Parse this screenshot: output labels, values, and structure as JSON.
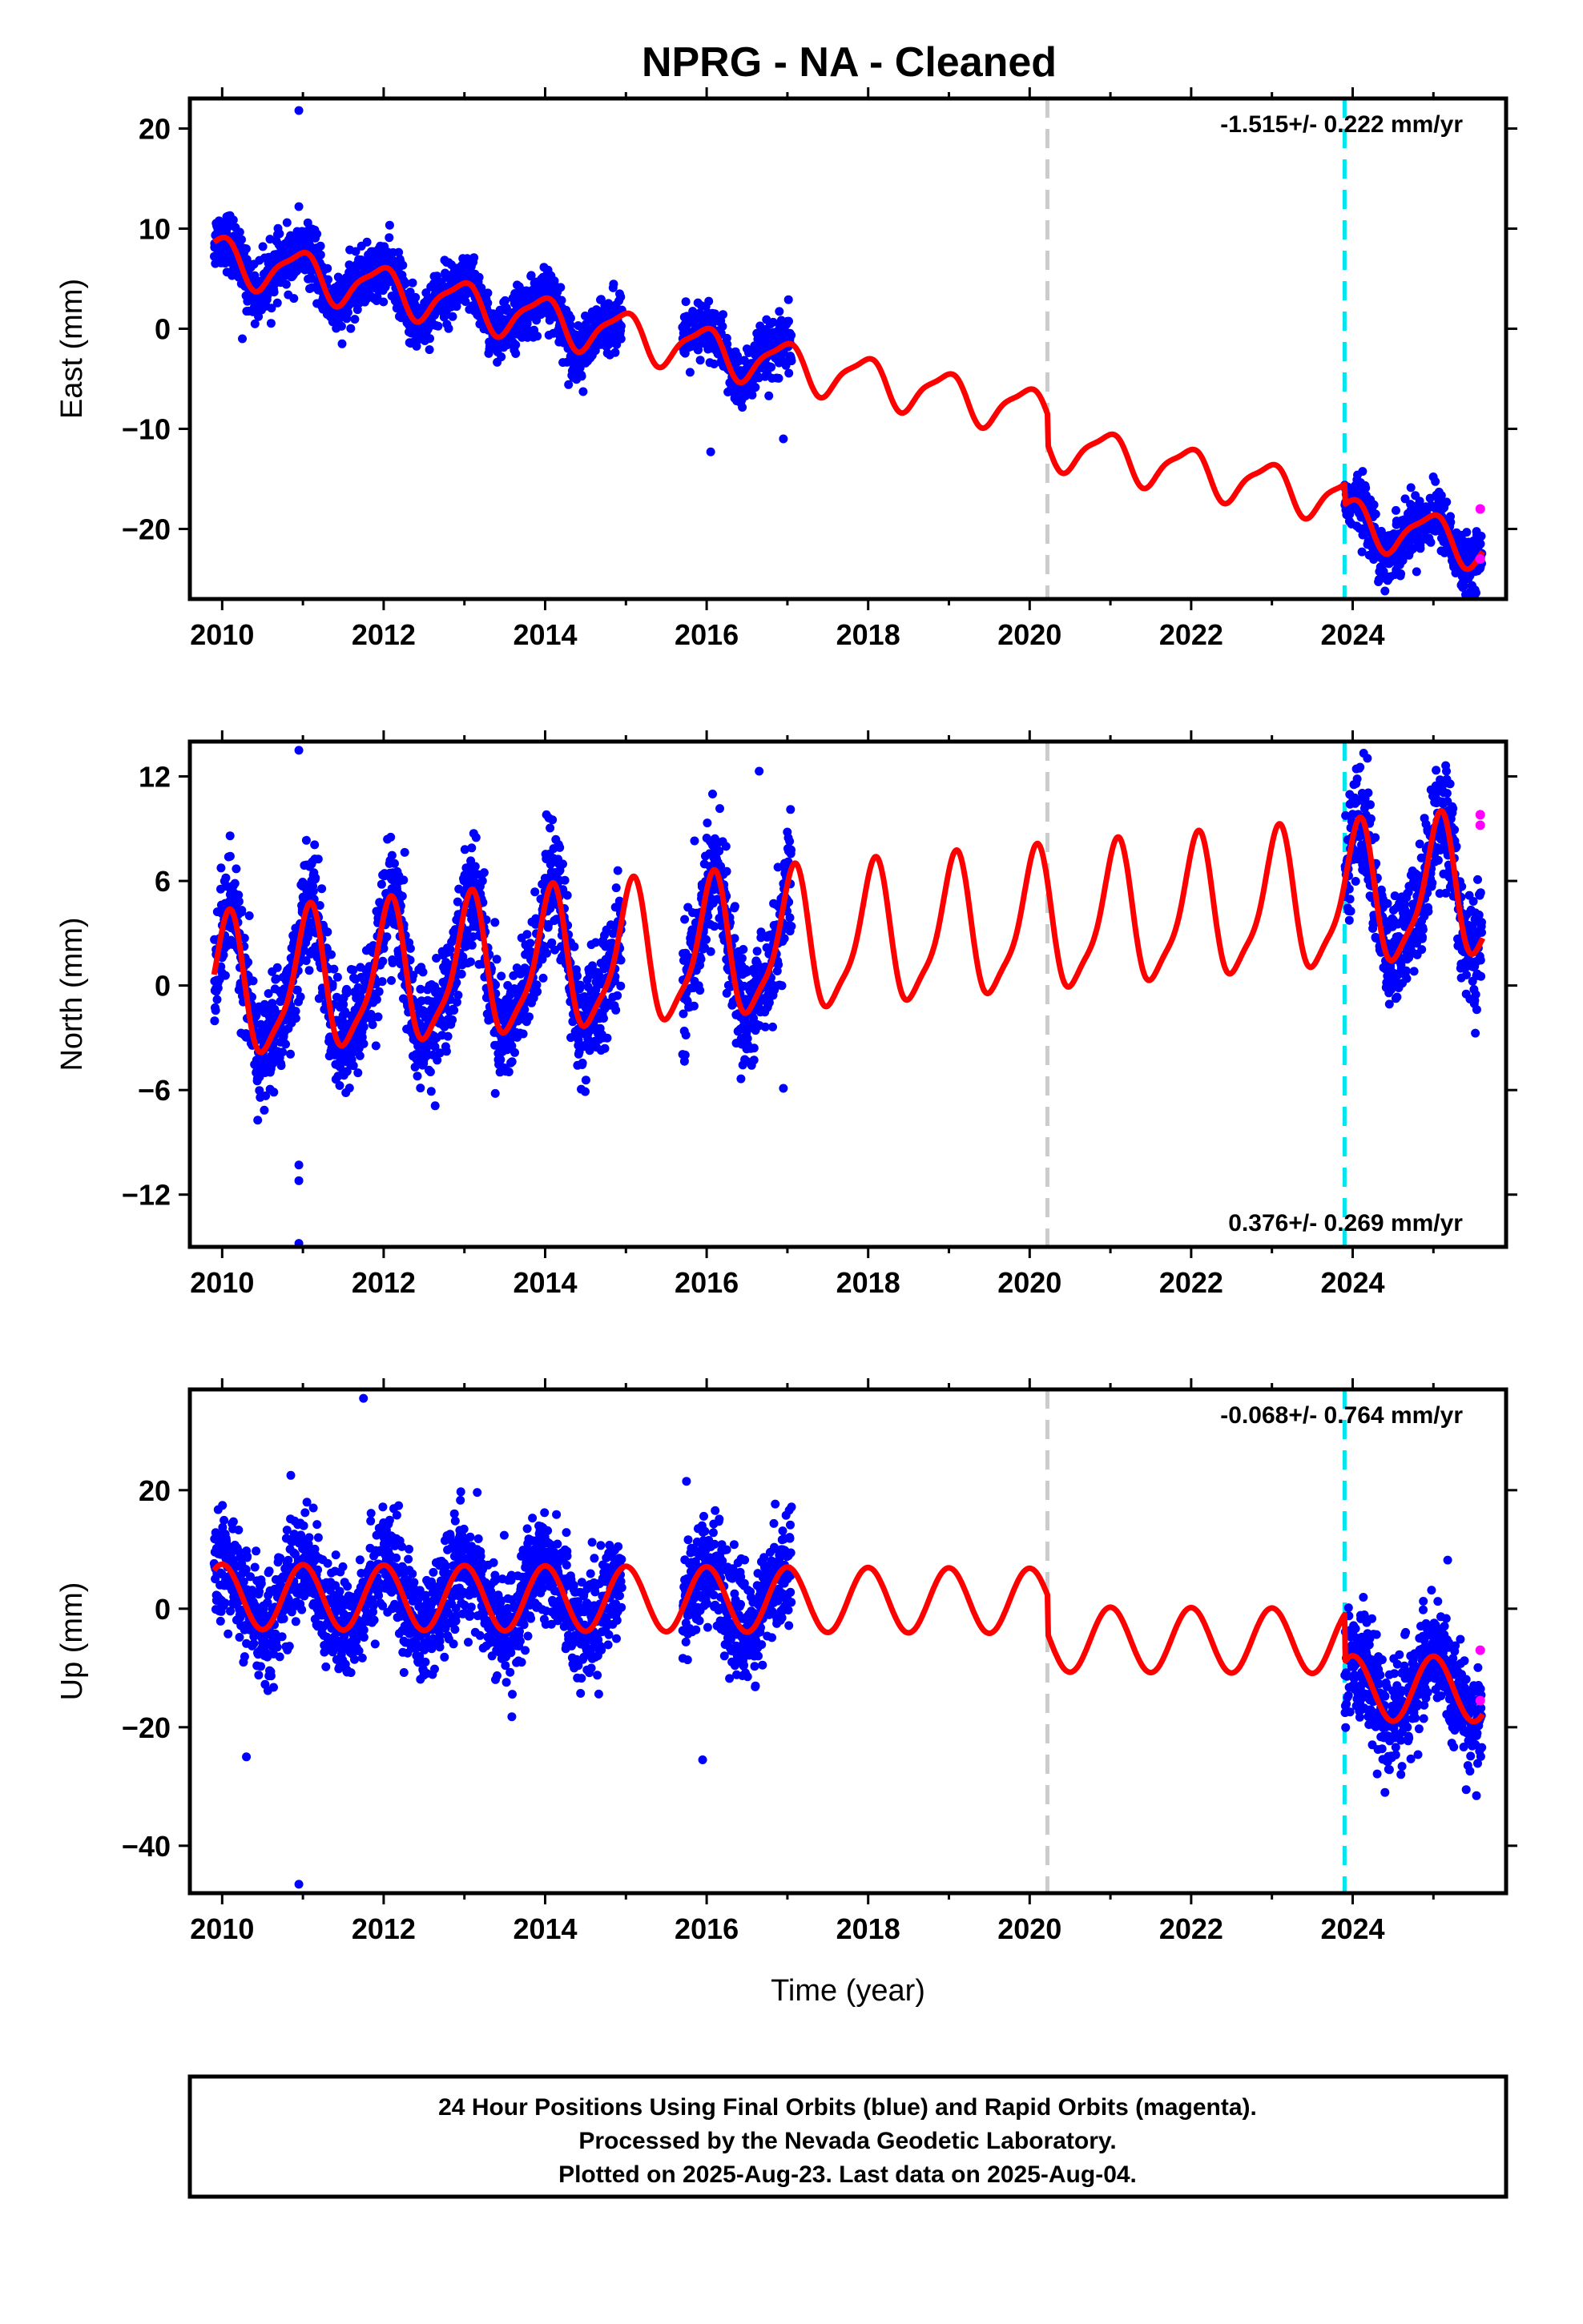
{
  "title": "NPRG  - NA - Cleaned",
  "footer": {
    "lines": [
      "24 Hour Positions Using Final Orbits (blue) and Rapid Orbits (magenta).",
      "Processed by the Nevada Geodetic Laboratory.",
      "Plotted on 2025-Aug-23. Last data on 2025-Aug-04."
    ]
  },
  "colors": {
    "final_points": "#0000ff",
    "rapid_points": "#ff00ff",
    "model": "#ff0000",
    "equipment_change": "#cccccc",
    "earthquake": "#00e5ee"
  },
  "chart_data": [
    {
      "type": "scatter",
      "id": "east",
      "ylabel": "East (mm)",
      "xlabel": "",
      "xlim": [
        2009.6,
        2025.9
      ],
      "ylim": [
        -27,
        23
      ],
      "xticks": [
        2010,
        2012,
        2014,
        2016,
        2018,
        2020,
        2022,
        2024
      ],
      "yticks": [
        -20,
        -10,
        0,
        10,
        20
      ],
      "rate_label": "-1.515+/- 0.222 mm/yr",
      "rate_position": "top-right",
      "vlines": [
        {
          "x": 2020.22,
          "style": "gray-dashed"
        },
        {
          "x": 2023.9,
          "style": "cyan-dashed"
        }
      ],
      "model": {
        "name": "model",
        "intercept": 7.0,
        "rate": -1.515,
        "annual": 2.2,
        "semiannual": 0.6,
        "phase_annual": 0.3,
        "offsets": [
          {
            "x": 2020.22,
            "dy": -3.0
          },
          {
            "x": 2023.9,
            "dy": -2.0
          }
        ]
      },
      "data_segments": [
        [
          2009.9,
          2014.95
        ],
        [
          2015.7,
          2017.05
        ],
        [
          2023.9,
          2025.6
        ]
      ],
      "noise_mm": 1.4,
      "outliers": [
        [
          2010.95,
          21.8
        ],
        [
          2010.95,
          12.2
        ],
        [
          2010.25,
          -1.0
        ],
        [
          2016.05,
          -12.3
        ],
        [
          2016.95,
          -11.0
        ],
        [
          2024.4,
          -26.2
        ]
      ],
      "rapid_points": [
        [
          2025.58,
          -18.0
        ],
        [
          2025.58,
          -23.0
        ]
      ]
    },
    {
      "type": "scatter",
      "id": "north",
      "ylabel": "North (mm)",
      "xlabel": "",
      "xlim": [
        2009.6,
        2025.9
      ],
      "ylim": [
        -15,
        14
      ],
      "xticks": [
        2010,
        2012,
        2014,
        2016,
        2018,
        2020,
        2022,
        2024
      ],
      "yticks": [
        -12,
        -6,
        0,
        6,
        12
      ],
      "rate_label": "0.376+/- 0.269 mm/yr",
      "rate_position": "bottom-right",
      "vlines": [
        {
          "x": 2020.22,
          "style": "gray-dashed"
        },
        {
          "x": 2023.9,
          "style": "cyan-dashed"
        }
      ],
      "model": {
        "name": "model",
        "intercept": -0.4,
        "rate": 0.376,
        "annual": 3.9,
        "semiannual": 1.0,
        "phase_annual": -0.4,
        "offsets": []
      },
      "data_segments": [
        [
          2009.9,
          2014.95
        ],
        [
          2015.7,
          2017.05
        ],
        [
          2023.9,
          2025.6
        ]
      ],
      "noise_mm": 1.6,
      "outliers": [
        [
          2010.95,
          13.5
        ],
        [
          2010.95,
          -10.3
        ],
        [
          2010.95,
          -11.2
        ],
        [
          2010.95,
          -14.8
        ],
        [
          2015.85,
          8.3
        ],
        [
          2016.65,
          12.3
        ],
        [
          2016.95,
          -5.9
        ]
      ],
      "rapid_points": [
        [
          2025.58,
          9.8
        ],
        [
          2025.58,
          9.2
        ]
      ]
    },
    {
      "type": "scatter",
      "id": "up",
      "ylabel": "Up (mm)",
      "xlabel": "Time (year)",
      "xlim": [
        2009.6,
        2025.9
      ],
      "ylim": [
        -48,
        37
      ],
      "xticks": [
        2010,
        2012,
        2014,
        2016,
        2018,
        2020,
        2022,
        2024
      ],
      "yticks": [
        -40,
        -20,
        0,
        20
      ],
      "rate_label": "-0.068+/- 0.764 mm/yr",
      "rate_position": "top-right",
      "vlines": [
        {
          "x": 2020.22,
          "style": "gray-dashed"
        },
        {
          "x": 2023.9,
          "style": "cyan-dashed"
        }
      ],
      "model": {
        "name": "model",
        "intercept": 2.0,
        "rate": -0.068,
        "annual": 5.5,
        "semiannual": 0.0,
        "phase_annual": 0.0,
        "offsets": [
          {
            "x": 2020.22,
            "dy": -6.5
          },
          {
            "x": 2023.9,
            "dy": -8.0
          }
        ]
      },
      "data_segments": [
        [
          2009.9,
          2014.95
        ],
        [
          2015.7,
          2017.05
        ],
        [
          2023.9,
          2025.6
        ]
      ],
      "noise_mm": 4.5,
      "outliers": [
        [
          2011.75,
          35.5
        ],
        [
          2010.95,
          -46.5
        ],
        [
          2010.3,
          -25.0
        ],
        [
          2015.95,
          -25.5
        ],
        [
          2010.85,
          22.5
        ],
        [
          2015.75,
          21.5
        ],
        [
          2024.4,
          -31.0
        ]
      ],
      "rapid_points": [
        [
          2025.58,
          -7.0
        ],
        [
          2025.58,
          -15.5
        ]
      ]
    }
  ]
}
